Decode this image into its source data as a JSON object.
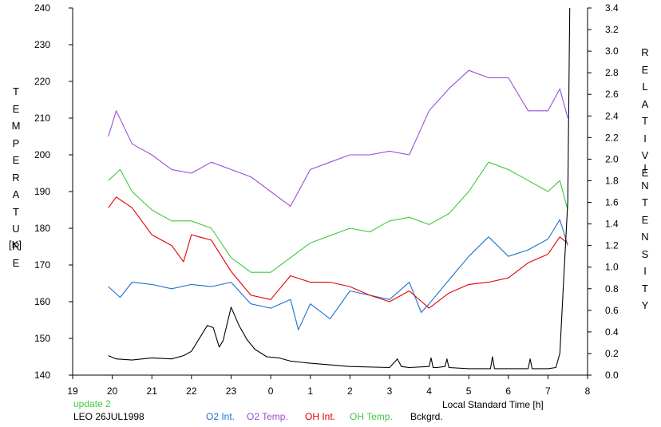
{
  "chart_data": {
    "type": "line",
    "left_axis_title": "TEMPERATURE",
    "left_axis_unit": "[K]",
    "right_axis_title_1": "RELATIVE",
    "right_axis_title_2": "INTENSITY",
    "xlabel": "Local Standard Time [h]",
    "update_label": "update 2",
    "dataset_label": "LEO 26JUL1998",
    "xlim": [
      19,
      32
    ],
    "ylim_left": [
      140,
      240
    ],
    "ylim_right": [
      0.0,
      3.4
    ],
    "x_ticks": [
      19,
      20,
      21,
      22,
      23,
      24,
      25,
      26,
      27,
      28,
      29,
      30,
      31,
      32
    ],
    "x_tick_labels": [
      "19",
      "20",
      "21",
      "22",
      "23",
      "0",
      "1",
      "2",
      "3",
      "4",
      "5",
      "6",
      "7",
      "8"
    ],
    "y_left_ticks": [
      "140",
      "150",
      "160",
      "170",
      "180",
      "190",
      "200",
      "210",
      "220",
      "230",
      "240"
    ],
    "y_right_ticks": [
      "0.0",
      "0.2",
      "0.4",
      "0.6",
      "0.8",
      "1.0",
      "1.2",
      "1.4",
      "1.6",
      "1.8",
      "2.0",
      "2.2",
      "2.4",
      "2.6",
      "2.8",
      "3.0",
      "3.2",
      "3.4"
    ],
    "grid": false,
    "legend_position": "bottom",
    "series": [
      {
        "name": "O2 Int.",
        "axis": "right",
        "color": "#1f6fd0",
        "x": [
          19.9,
          20.2,
          20.5,
          21.0,
          21.5,
          22.0,
          22.5,
          23.0,
          23.5,
          24.0,
          24.5,
          24.7,
          25.0,
          25.5,
          26.0,
          26.5,
          27.0,
          27.5,
          27.8,
          28.0,
          28.5,
          29.0,
          29.5,
          30.0,
          30.5,
          31.0,
          31.3,
          31.5
        ],
        "y": [
          0.82,
          0.72,
          0.86,
          0.84,
          0.8,
          0.84,
          0.82,
          0.86,
          0.66,
          0.62,
          0.7,
          0.42,
          0.66,
          0.52,
          0.78,
          0.74,
          0.7,
          0.86,
          0.58,
          0.66,
          0.88,
          1.1,
          1.28,
          1.1,
          1.16,
          1.26,
          1.44,
          1.2
        ]
      },
      {
        "name": "O2 Temp.",
        "axis": "left",
        "color": "#9a4fd6",
        "x": [
          19.9,
          20.1,
          20.5,
          21.0,
          21.5,
          22.0,
          22.5,
          23.0,
          23.5,
          24.0,
          24.5,
          25.0,
          25.5,
          26.0,
          26.5,
          27.0,
          27.5,
          28.0,
          28.5,
          29.0,
          29.5,
          30.0,
          30.5,
          31.0,
          31.3,
          31.5
        ],
        "y": [
          205,
          212,
          203,
          200,
          196,
          195,
          198,
          196,
          194,
          190,
          186,
          196,
          198,
          200,
          200,
          201,
          200,
          212,
          218,
          223,
          221,
          221,
          212,
          212,
          218,
          210
        ]
      },
      {
        "name": "OH Int.",
        "axis": "right",
        "color": "#e00000",
        "x": [
          19.9,
          20.1,
          20.5,
          21.0,
          21.5,
          21.8,
          22.0,
          22.5,
          23.0,
          23.5,
          24.0,
          24.5,
          25.0,
          25.5,
          26.0,
          26.5,
          27.0,
          27.5,
          28.0,
          28.5,
          29.0,
          29.5,
          30.0,
          30.5,
          31.0,
          31.3,
          31.5
        ],
        "y": [
          1.55,
          1.65,
          1.55,
          1.3,
          1.2,
          1.05,
          1.3,
          1.25,
          0.96,
          0.74,
          0.7,
          0.92,
          0.86,
          0.86,
          0.82,
          0.74,
          0.68,
          0.78,
          0.62,
          0.76,
          0.84,
          0.86,
          0.9,
          1.04,
          1.12,
          1.28,
          1.22
        ]
      },
      {
        "name": "OH Temp.",
        "axis": "left",
        "color": "#3ec83e",
        "x": [
          19.9,
          20.2,
          20.5,
          21.0,
          21.5,
          22.0,
          22.5,
          23.0,
          23.5,
          24.0,
          24.5,
          25.0,
          25.5,
          26.0,
          26.5,
          27.0,
          27.5,
          28.0,
          28.5,
          29.0,
          29.5,
          30.0,
          30.5,
          31.0,
          31.3,
          31.5
        ],
        "y": [
          193,
          196,
          190,
          185,
          182,
          182,
          180,
          172,
          168,
          168,
          172,
          176,
          178,
          180,
          179,
          182,
          183,
          181,
          184,
          190,
          198,
          196,
          193,
          190,
          193,
          185
        ]
      },
      {
        "name": "Bckgrd.",
        "axis": "right",
        "color": "#000000",
        "x": [
          19.9,
          20.1,
          20.5,
          21.0,
          21.5,
          21.8,
          22.0,
          22.3,
          22.4,
          22.55,
          22.7,
          22.8,
          23.0,
          23.2,
          23.4,
          23.6,
          23.9,
          24.2,
          24.5,
          25.0,
          26.0,
          27.0,
          27.2,
          27.3,
          27.5,
          28.0,
          28.05,
          28.1,
          28.2,
          28.4,
          28.45,
          28.5,
          29.0,
          29.55,
          29.6,
          29.65,
          30.0,
          30.5,
          30.55,
          30.6,
          31.0,
          31.2,
          31.3,
          31.4,
          31.5,
          31.55
        ],
        "y": [
          0.18,
          0.15,
          0.14,
          0.16,
          0.15,
          0.18,
          0.22,
          0.4,
          0.46,
          0.44,
          0.26,
          0.32,
          0.63,
          0.46,
          0.33,
          0.24,
          0.17,
          0.16,
          0.13,
          0.11,
          0.08,
          0.07,
          0.15,
          0.08,
          0.07,
          0.08,
          0.16,
          0.07,
          0.07,
          0.08,
          0.15,
          0.07,
          0.06,
          0.06,
          0.17,
          0.06,
          0.06,
          0.06,
          0.15,
          0.06,
          0.06,
          0.07,
          0.2,
          0.9,
          1.6,
          3.4
        ]
      }
    ]
  }
}
